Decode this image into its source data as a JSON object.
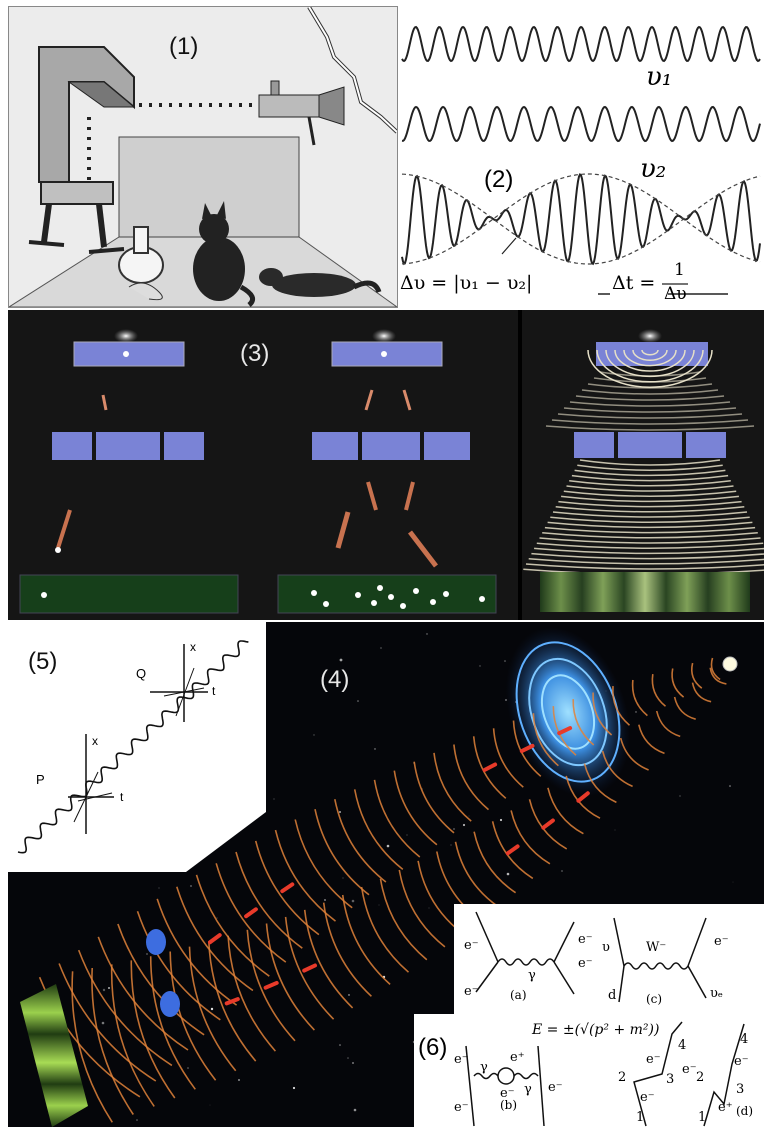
{
  "panel1": {
    "label": "(1)"
  },
  "panel2": {
    "label": "(2)",
    "nu1": "υ₁",
    "nu2": "υ₂",
    "formula_left": "Δυ = |υ₁ − υ₂|",
    "formula_dt": "Δt =",
    "frac_num": "1",
    "frac_den": "Δυ"
  },
  "panel3": {
    "label": "(3)"
  },
  "panel4": {
    "label": "(4)"
  },
  "panel5": {
    "label": "(5)",
    "P": "P",
    "Q": "Q",
    "x1": "x",
    "t1": "t",
    "x2": "x",
    "t2": "t"
  },
  "panel6": {
    "label": "(6)",
    "formula": "E = ±(√(p² + m²))",
    "a": {
      "tag": "(a)",
      "tl": "e⁻",
      "tr": "e⁻",
      "bl": "e⁻",
      "br": "e⁻",
      "boson": "γ"
    },
    "b": {
      "tag": "(b)",
      "tl": "e⁻",
      "bl": "e⁻",
      "br": "e⁻",
      "pos": "e⁺",
      "ele": "e⁻",
      "g1": "γ",
      "g2": "γ"
    },
    "c": {
      "tag": "(c)",
      "tl": "υ",
      "w": "W⁻",
      "tr": "e⁻",
      "bl": "d",
      "br": "υₑ"
    },
    "d": {
      "tag": "(d)",
      "n1": "1",
      "n2": "2",
      "n3": "3",
      "n4": "4",
      "m1": "1",
      "m2": "2",
      "m3": "3",
      "m4": "4",
      "e1": "e⁻",
      "e2": "e⁻",
      "e3": "e⁻",
      "e4": "e⁻",
      "e5": "e⁺"
    }
  }
}
